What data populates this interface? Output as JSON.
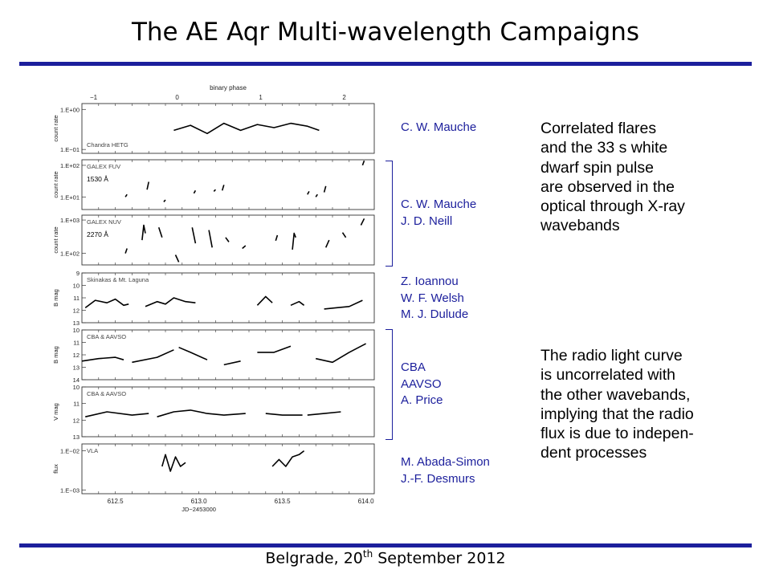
{
  "slide": {
    "title": "The AE Aqr Multi-wavelength Campaigns",
    "footer_prefix": "Belgrade, 20",
    "footer_sup": "th",
    "footer_suffix": " September 2012",
    "accent_color": "#1c1f9c"
  },
  "credits": [
    {
      "lines": [
        "C. W. Mauche"
      ]
    },
    {
      "lines": [
        "C. W. Mauche",
        "J. D. Neill"
      ]
    },
    {
      "lines": [
        "Z. Ioannou",
        "W. F. Welsh",
        "M. J. Dulude"
      ]
    },
    {
      "lines": [
        "CBA",
        "AAVSO",
        "A. Price"
      ]
    },
    {
      "lines": [
        "M. Abada-Simon",
        "J.-F. Desmurs"
      ]
    }
  ],
  "notes": [
    {
      "lines": [
        "Correlated flares",
        "and the 33 s white",
        "dwarf spin pulse",
        "are observed in the",
        "optical through X-ray",
        "wavebands"
      ]
    },
    {
      "lines": [
        "The radio light curve",
        "is uncorrelated with",
        "the other wavebands,",
        "implying that the radio",
        "flux is due to indepen-",
        "dent processes"
      ]
    }
  ],
  "chart_data": {
    "type": "line",
    "xlabel": "JD−2453000",
    "x_ticks": [
      "612.5",
      "613.0",
      "613.5",
      "614.0"
    ],
    "xlim": [
      612.3,
      614.05
    ],
    "top_axis": {
      "label": "binary phase",
      "ticks": [
        "−1",
        "0",
        "1",
        "2"
      ],
      "tick_jd": [
        612.37,
        612.87,
        613.37,
        613.87
      ]
    },
    "panels": [
      {
        "name": "Chandra HETG",
        "ylabel": "count rate",
        "log": true,
        "ylim": [
          0.08,
          1.4
        ],
        "yticks": [
          1.0,
          0.1
        ],
        "ytick_labels": [
          "1.E+00",
          "1.E−01"
        ],
        "wavelength": "",
        "segments": [
          {
            "jd": [
              612.85,
              612.95,
              613.05,
              613.15,
              613.25,
              613.35,
              613.45,
              613.55,
              613.65,
              613.72
            ],
            "y": [
              0.3,
              0.4,
              0.25,
              0.45,
              0.3,
              0.42,
              0.35,
              0.45,
              0.38,
              0.3
            ]
          }
        ]
      },
      {
        "name": "GALEX FUV",
        "ylabel": "count rate",
        "log": true,
        "ylim": [
          4,
          150
        ],
        "yticks": [
          100,
          10
        ],
        "ytick_labels": [
          "1.E+02",
          "1.E+01"
        ],
        "wavelength": "1530 Å",
        "segments": [
          {
            "jd": [
              612.56,
              612.57
            ],
            "y": [
              10,
              12
            ]
          },
          {
            "jd": [
              612.69,
              612.7
            ],
            "y": [
              17,
              30
            ]
          },
          {
            "jd": [
              612.79,
              612.8
            ],
            "y": [
              7,
              8
            ]
          },
          {
            "jd": [
              612.97,
              612.98
            ],
            "y": [
              13,
              16
            ]
          },
          {
            "jd": [
              613.09,
              613.1
            ],
            "y": [
              15,
              17
            ]
          },
          {
            "jd": [
              613.14,
              613.15
            ],
            "y": [
              16,
              24
            ]
          },
          {
            "jd": [
              613.65,
              613.66
            ],
            "y": [
              12,
              15
            ]
          },
          {
            "jd": [
              613.7,
              613.71
            ],
            "y": [
              10,
              12
            ]
          },
          {
            "jd": [
              613.75,
              613.76
            ],
            "y": [
              14,
              22
            ]
          },
          {
            "jd": [
              613.98,
              613.99
            ],
            "y": [
              100,
              140
            ]
          }
        ]
      },
      {
        "name": "GALEX NUV",
        "ylabel": "count rate",
        "log": true,
        "ylim": [
          45,
          1400
        ],
        "yticks": [
          1000,
          100
        ],
        "ytick_labels": [
          "1.E+03",
          "1.E+02"
        ],
        "wavelength": "2270 Å",
        "segments": [
          {
            "jd": [
              612.56,
              612.57
            ],
            "y": [
              100,
              140
            ]
          },
          {
            "jd": [
              612.66,
              612.67,
              612.68
            ],
            "y": [
              250,
              700,
              400
            ]
          },
          {
            "jd": [
              612.76,
              612.78
            ],
            "y": [
              600,
              300
            ]
          },
          {
            "jd": [
              612.86,
              612.87,
              612.88
            ],
            "y": [
              90,
              70,
              55
            ]
          },
          {
            "jd": [
              612.96,
              612.98
            ],
            "y": [
              600,
              200
            ]
          },
          {
            "jd": [
              613.06,
              613.08
            ],
            "y": [
              500,
              150
            ]
          },
          {
            "jd": [
              613.16,
              613.18
            ],
            "y": [
              300,
              220
            ]
          },
          {
            "jd": [
              613.26,
              613.28
            ],
            "y": [
              140,
              170
            ]
          },
          {
            "jd": [
              613.46,
              613.47
            ],
            "y": [
              240,
              350
            ]
          },
          {
            "jd": [
              613.56,
              613.57,
              613.58
            ],
            "y": [
              130,
              400,
              300
            ]
          },
          {
            "jd": [
              613.76,
              613.78
            ],
            "y": [
              150,
              250
            ]
          },
          {
            "jd": [
              613.86,
              613.88
            ],
            "y": [
              420,
              300
            ]
          },
          {
            "jd": [
              613.97,
              613.99
            ],
            "y": [
              700,
              1100
            ]
          }
        ]
      },
      {
        "name": "Skinakas & Mt. Laguna",
        "ylabel": "B mag",
        "log": false,
        "ylim": [
          13,
          9
        ],
        "yticks": [
          9,
          10,
          11,
          12,
          13
        ],
        "ytick_labels": [
          "9",
          "10",
          "11",
          "12",
          "13"
        ],
        "wavelength": "",
        "segments": [
          {
            "jd": [
              612.32,
              612.38,
              612.45,
              612.5,
              612.55,
              612.58
            ],
            "y": [
              11.8,
              11.2,
              11.4,
              11.1,
              11.6,
              11.5
            ]
          },
          {
            "jd": [
              612.68,
              612.75,
              612.8,
              612.85,
              612.92,
              612.98
            ],
            "y": [
              11.7,
              11.3,
              11.5,
              11.0,
              11.3,
              11.4
            ]
          },
          {
            "jd": [
              613.35,
              613.4,
              613.44
            ],
            "y": [
              11.6,
              10.9,
              11.4
            ]
          },
          {
            "jd": [
              613.55,
              613.6,
              613.63
            ],
            "y": [
              11.6,
              11.3,
              11.6
            ]
          },
          {
            "jd": [
              613.75,
              613.82,
              613.9,
              613.98
            ],
            "y": [
              11.9,
              11.8,
              11.7,
              11.2
            ]
          }
        ]
      },
      {
        "name": "CBA & AAVSO",
        "ylabel": "B mag",
        "log": false,
        "ylim": [
          14,
          10
        ],
        "yticks": [
          10,
          11,
          12,
          13,
          14
        ],
        "ytick_labels": [
          "10",
          "11",
          "12",
          "13",
          "14"
        ],
        "wavelength": "",
        "segments": [
          {
            "jd": [
              612.3,
              612.4,
              612.5,
              612.55
            ],
            "y": [
              12.5,
              12.3,
              12.2,
              12.4
            ]
          },
          {
            "jd": [
              612.6,
              612.75,
              612.85
            ],
            "y": [
              12.6,
              12.2,
              11.6
            ]
          },
          {
            "jd": [
              612.88,
              612.95,
              613.05
            ],
            "y": [
              11.4,
              11.8,
              12.4
            ]
          },
          {
            "jd": [
              613.15,
              613.25
            ],
            "y": [
              12.8,
              12.5
            ]
          },
          {
            "jd": [
              613.35,
              613.45,
              613.55
            ],
            "y": [
              11.8,
              11.8,
              11.3
            ]
          },
          {
            "jd": [
              613.7,
              613.8,
              613.9,
              614.0
            ],
            "y": [
              12.3,
              12.6,
              11.8,
              11.1
            ]
          }
        ]
      },
      {
        "name": "CBA & AAVSO",
        "ylabel": "V mag",
        "log": false,
        "ylim": [
          13,
          10
        ],
        "yticks": [
          10,
          11,
          12,
          13
        ],
        "ytick_labels": [
          "10",
          "11",
          "12",
          "13"
        ],
        "wavelength": "",
        "segments": [
          {
            "jd": [
              612.32,
              612.45,
              612.6,
              612.7
            ],
            "y": [
              11.8,
              11.5,
              11.7,
              11.6
            ]
          },
          {
            "jd": [
              612.75,
              612.85,
              612.95,
              613.05,
              613.15,
              613.28
            ],
            "y": [
              11.8,
              11.5,
              11.4,
              11.6,
              11.7,
              11.6
            ]
          },
          {
            "jd": [
              613.4,
              613.5,
              613.62
            ],
            "y": [
              11.6,
              11.7,
              11.7
            ]
          },
          {
            "jd": [
              613.65,
              613.75,
              613.85
            ],
            "y": [
              11.7,
              11.6,
              11.5
            ]
          }
        ]
      },
      {
        "name": "VLA",
        "ylabel": "flux",
        "log": true,
        "ylim": [
          0.0008,
          0.015
        ],
        "yticks": [
          0.01,
          0.001
        ],
        "ytick_labels": [
          "1.E−02",
          "1.E−03"
        ],
        "wavelength": "",
        "segments": [
          {
            "jd": [
              612.78,
              612.8,
              612.83,
              612.86,
              612.89,
              612.92
            ],
            "y": [
              0.004,
              0.008,
              0.003,
              0.007,
              0.004,
              0.005
            ]
          },
          {
            "jd": [
              613.44,
              613.48,
              613.52,
              613.56,
              613.6,
              613.63
            ],
            "y": [
              0.004,
              0.006,
              0.004,
              0.007,
              0.008,
              0.01
            ]
          }
        ]
      }
    ]
  }
}
